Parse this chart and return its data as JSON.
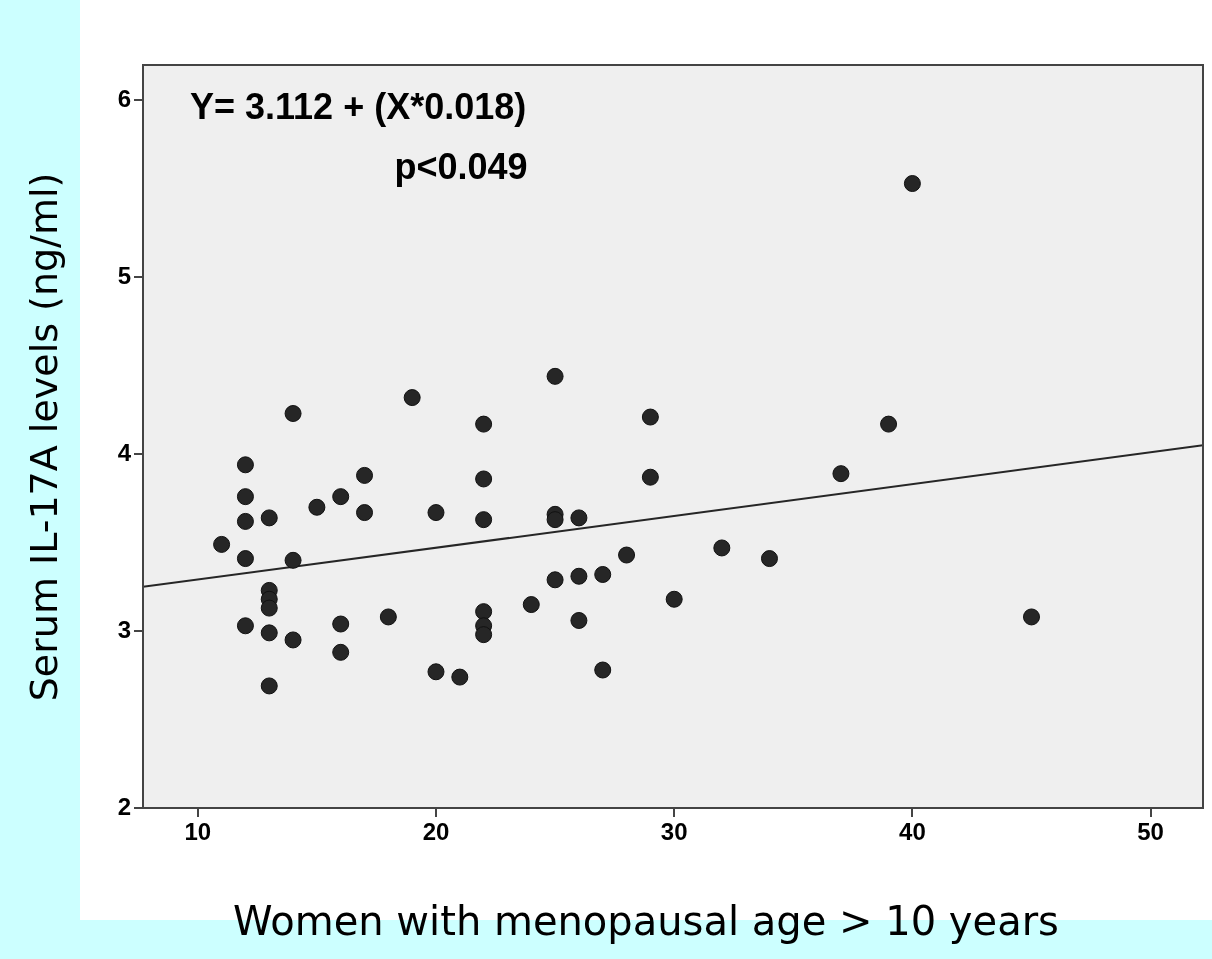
{
  "chart_data": {
    "type": "scatter",
    "xlabel": "Women with menopausal age > 10 years",
    "ylabel": "Serum IL-17A  levels (ng/ml)",
    "annotations": [
      "Y= 3.112 + (X*0.018)",
      "p<0.049"
    ],
    "xlim": [
      7.7,
      52.2
    ],
    "xticks": [
      10,
      20,
      30,
      40,
      50
    ],
    "ylim": [
      2,
      6.2
    ],
    "yticks": [
      2,
      3,
      4,
      5,
      6
    ],
    "grid": false,
    "series": [
      {
        "marker": "circle",
        "color": "#262626",
        "x": [
          11,
          12,
          12,
          12,
          12,
          12,
          13,
          13,
          13,
          13,
          13,
          13,
          14,
          14,
          14,
          15,
          16,
          16,
          16,
          17,
          17,
          18,
          19,
          20,
          20,
          21,
          22,
          22,
          22,
          22,
          22,
          22,
          24,
          25,
          25,
          25,
          25,
          26,
          26,
          26,
          27,
          27,
          28,
          29,
          29,
          30,
          32,
          34,
          37,
          39,
          40,
          45
        ],
        "values": [
          3.49,
          3.94,
          3.76,
          3.62,
          3.41,
          3.03,
          3.64,
          3.23,
          3.18,
          3.13,
          2.99,
          2.69,
          4.23,
          3.4,
          2.95,
          3.7,
          3.76,
          3.04,
          2.88,
          3.88,
          3.67,
          3.08,
          4.32,
          3.67,
          2.77,
          2.74,
          4.17,
          3.86,
          3.63,
          3.11,
          3.03,
          2.98,
          3.15,
          4.44,
          3.66,
          3.63,
          3.29,
          3.64,
          3.31,
          3.06,
          3.32,
          2.78,
          3.43,
          4.21,
          3.87,
          3.18,
          3.47,
          3.41,
          3.89,
          4.17,
          5.53,
          3.08
        ]
      },
      {
        "type": "line",
        "marker": "none",
        "color": "#262626",
        "x": [
          7.7,
          52.2
        ],
        "values": [
          3.25,
          4.05
        ]
      }
    ]
  }
}
